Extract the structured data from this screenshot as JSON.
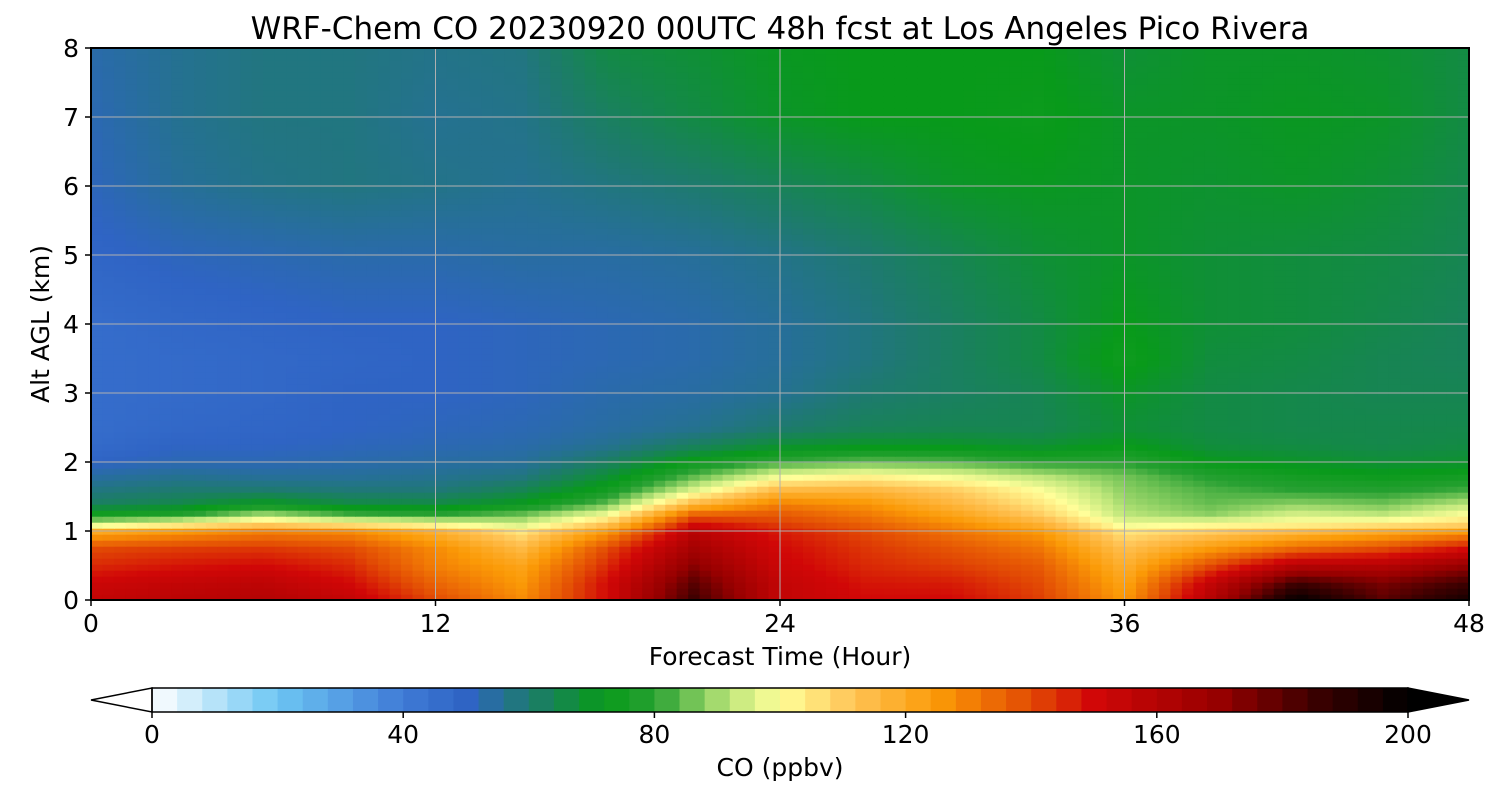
{
  "chart_data": {
    "type": "heatmap",
    "title": "WRF-Chem CO  20230920 00UTC 48h fcst at Los Angeles Pico Rivera",
    "xlabel": "Forecast Time (Hour)",
    "ylabel": "Alt AGL (km)",
    "xlim": [
      0,
      48
    ],
    "ylim": [
      0,
      8
    ],
    "xticks": [
      0,
      12,
      24,
      36,
      48
    ],
    "yticks": [
      0,
      1,
      2,
      3,
      4,
      5,
      6,
      7,
      8
    ],
    "grid": true,
    "x": [
      0,
      3,
      6,
      9,
      12,
      15,
      18,
      21,
      24,
      27,
      30,
      33,
      36,
      39,
      42,
      45,
      48
    ],
    "y": [
      0,
      0.25,
      0.5,
      0.75,
      1,
      1.1,
      1.25,
      1.4,
      1.6,
      1.8,
      2,
      2.25,
      2.5,
      3,
      3.5,
      4,
      5,
      6,
      7,
      8
    ],
    "z": [
      [
        155,
        158,
        160,
        155,
        140,
        128,
        150,
        185,
        155,
        150,
        150,
        142,
        125,
        160,
        200,
        180,
        195
      ],
      [
        152,
        155,
        157,
        150,
        135,
        125,
        150,
        180,
        155,
        148,
        147,
        140,
        122,
        155,
        185,
        175,
        185
      ],
      [
        145,
        148,
        150,
        145,
        130,
        122,
        145,
        172,
        152,
        145,
        142,
        137,
        118,
        140,
        160,
        160,
        170
      ],
      [
        140,
        142,
        143,
        140,
        128,
        115,
        140,
        165,
        150,
        143,
        138,
        132,
        113,
        125,
        135,
        140,
        150
      ],
      [
        120,
        125,
        130,
        128,
        118,
        105,
        125,
        158,
        147,
        140,
        132,
        125,
        105,
        110,
        115,
        120,
        125
      ],
      [
        95,
        102,
        110,
        105,
        100,
        95,
        112,
        150,
        142,
        136,
        128,
        118,
        98,
        100,
        102,
        105,
        108
      ],
      [
        75,
        78,
        90,
        82,
        80,
        85,
        98,
        135,
        137,
        131,
        122,
        110,
        92,
        88,
        95,
        92,
        100
      ],
      [
        62,
        65,
        72,
        66,
        66,
        72,
        85,
        115,
        130,
        126,
        116,
        105,
        90,
        85,
        88,
        86,
        92
      ],
      [
        58,
        60,
        60,
        59,
        59,
        64,
        75,
        96,
        115,
        116,
        110,
        100,
        88,
        83,
        80,
        79,
        82
      ],
      [
        54,
        56,
        55,
        55,
        56,
        58,
        68,
        84,
        98,
        102,
        98,
        92,
        86,
        79,
        75,
        73,
        75
      ],
      [
        50,
        52,
        52,
        53,
        54,
        55,
        62,
        74,
        82,
        85,
        84,
        80,
        80,
        72,
        70,
        68,
        69
      ],
      [
        47,
        50,
        50,
        51,
        52,
        53,
        56,
        62,
        68,
        70,
        70,
        68,
        72,
        67,
        66,
        65,
        66
      ],
      [
        46,
        48,
        49,
        50,
        51,
        52,
        54,
        56,
        60,
        63,
        64,
        64,
        68,
        66,
        65,
        65,
        65
      ],
      [
        46,
        47,
        48,
        50,
        50,
        51,
        53,
        54,
        56,
        60,
        62,
        64,
        70,
        66,
        65,
        64,
        64
      ],
      [
        46,
        47,
        48,
        49,
        50,
        51,
        52,
        53,
        55,
        58,
        62,
        66,
        74,
        67,
        66,
        64,
        63
      ],
      [
        46,
        48,
        49,
        50,
        50,
        51,
        52,
        53,
        55,
        58,
        62,
        66,
        72,
        68,
        67,
        65,
        63
      ],
      [
        49,
        51,
        52,
        53,
        53,
        54,
        54,
        55,
        57,
        60,
        64,
        68,
        70,
        68,
        67,
        66,
        64
      ],
      [
        51,
        55,
        57,
        58,
        57,
        56,
        58,
        60,
        63,
        66,
        70,
        71,
        70,
        69,
        70,
        68,
        65
      ],
      [
        52,
        56,
        58,
        58,
        56,
        57,
        62,
        66,
        70,
        72,
        72,
        73,
        70,
        70,
        71,
        70,
        66
      ],
      [
        53,
        56,
        58,
        58,
        57,
        58,
        66,
        68,
        71,
        72,
        72,
        72,
        68,
        70,
        70,
        69,
        66
      ]
    ],
    "colorbar": {
      "label": "CO  (ppbv)",
      "min": 0,
      "max": 200,
      "ticks": [
        0,
        40,
        80,
        120,
        160,
        200
      ],
      "extend": "both"
    },
    "colors": {
      "stops": [
        [
          0,
          "#ffffff"
        ],
        [
          20,
          "#6cc6f3"
        ],
        [
          40,
          "#3f7ad6"
        ],
        [
          50,
          "#2f64c4"
        ],
        [
          60,
          "#1e7a6f"
        ],
        [
          72,
          "#089a1a"
        ],
        [
          80,
          "#27a032"
        ],
        [
          92,
          "#bde67a"
        ],
        [
          100,
          "#ffff9a"
        ],
        [
          112,
          "#ffc254"
        ],
        [
          125,
          "#fb9a06"
        ],
        [
          140,
          "#e24a04"
        ],
        [
          150,
          "#d10707"
        ],
        [
          170,
          "#960000"
        ],
        [
          185,
          "#3c0000"
        ],
        [
          200,
          "#000000"
        ]
      ]
    }
  }
}
